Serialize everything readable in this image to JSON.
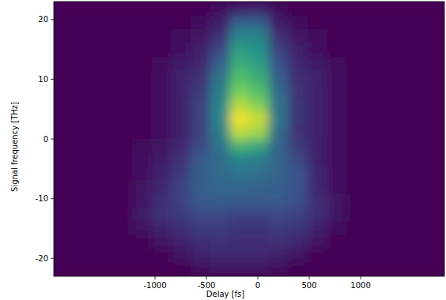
{
  "chart_data": {
    "type": "heatmap",
    "x_label": "Delay [fs]",
    "y_label": "Signal frequency [THz]",
    "xlim": [
      -1985,
      1815
    ],
    "ylim": [
      -23,
      23
    ],
    "xticks": [
      -1000,
      -500,
      0,
      500,
      1000
    ],
    "yticks": [
      -20,
      -10,
      0,
      10,
      20
    ],
    "x": [
      -1890,
      -1700,
      -1510,
      -1320,
      -1130,
      -940,
      -750,
      -560,
      -370,
      -180,
      10,
      200,
      390,
      580,
      770,
      960,
      1150,
      1340,
      1530,
      1720
    ],
    "y": [
      21.85,
      19.55,
      17.25,
      14.95,
      12.65,
      10.35,
      8.05,
      5.75,
      3.45,
      1.15,
      -1.15,
      -3.45,
      -5.75,
      -8.05,
      -10.35,
      -12.65,
      -14.95,
      -17.25,
      -19.55,
      -21.85
    ],
    "values": [
      [
        0,
        0,
        0,
        0,
        0,
        0,
        0,
        0,
        0.03,
        0.08,
        0.1,
        0.03,
        0,
        0,
        0,
        0,
        0,
        0,
        0,
        0
      ],
      [
        0,
        0,
        0,
        0,
        0,
        0,
        0,
        0.03,
        0.08,
        0.3,
        0.3,
        0.08,
        0.03,
        0,
        0,
        0,
        0,
        0,
        0,
        0
      ],
      [
        0,
        0,
        0,
        0,
        0,
        0,
        0.04,
        0.06,
        0.15,
        0.45,
        0.45,
        0.15,
        0.06,
        0.04,
        0,
        0,
        0,
        0,
        0,
        0
      ],
      [
        0,
        0,
        0,
        0,
        0,
        0,
        0.05,
        0.1,
        0.22,
        0.55,
        0.5,
        0.2,
        0.1,
        0.05,
        0,
        0,
        0,
        0,
        0,
        0
      ],
      [
        0,
        0,
        0,
        0,
        0,
        0.03,
        0.08,
        0.12,
        0.3,
        0.62,
        0.55,
        0.25,
        0.12,
        0.08,
        0.03,
        0,
        0,
        0,
        0,
        0
      ],
      [
        0,
        0,
        0,
        0,
        0,
        0.04,
        0.1,
        0.15,
        0.38,
        0.7,
        0.62,
        0.3,
        0.14,
        0.1,
        0.04,
        0,
        0,
        0,
        0,
        0
      ],
      [
        0,
        0,
        0,
        0,
        0,
        0.05,
        0.1,
        0.18,
        0.42,
        0.78,
        0.7,
        0.35,
        0.15,
        0.1,
        0.05,
        0,
        0,
        0,
        0,
        0
      ],
      [
        0,
        0,
        0,
        0,
        0,
        0.05,
        0.1,
        0.2,
        0.45,
        0.88,
        0.8,
        0.38,
        0.16,
        0.1,
        0.05,
        0,
        0,
        0,
        0,
        0
      ],
      [
        0,
        0,
        0,
        0,
        0,
        0.05,
        0.1,
        0.2,
        0.45,
        0.98,
        0.92,
        0.38,
        0.16,
        0.1,
        0.05,
        0,
        0,
        0,
        0,
        0
      ],
      [
        0,
        0,
        0,
        0,
        0,
        0.05,
        0.1,
        0.2,
        0.42,
        0.9,
        0.85,
        0.35,
        0.15,
        0.1,
        0.05,
        0,
        0,
        0,
        0,
        0
      ],
      [
        0,
        0,
        0,
        0,
        0.03,
        0.06,
        0.12,
        0.22,
        0.38,
        0.65,
        0.6,
        0.32,
        0.18,
        0.1,
        0.04,
        0,
        0,
        0,
        0,
        0
      ],
      [
        0,
        0,
        0,
        0,
        0.04,
        0.08,
        0.15,
        0.28,
        0.35,
        0.45,
        0.42,
        0.32,
        0.22,
        0.1,
        0.04,
        0,
        0,
        0,
        0,
        0
      ],
      [
        0,
        0,
        0,
        0,
        0.05,
        0.1,
        0.18,
        0.3,
        0.35,
        0.38,
        0.36,
        0.32,
        0.25,
        0.12,
        0.05,
        0,
        0,
        0,
        0,
        0
      ],
      [
        0,
        0,
        0,
        0,
        0.06,
        0.12,
        0.2,
        0.3,
        0.33,
        0.33,
        0.32,
        0.3,
        0.25,
        0.12,
        0.05,
        0,
        0,
        0,
        0,
        0
      ],
      [
        0,
        0,
        0,
        0,
        0.07,
        0.14,
        0.2,
        0.28,
        0.3,
        0.28,
        0.28,
        0.28,
        0.24,
        0.14,
        0.06,
        0,
        0,
        0,
        0,
        0
      ],
      [
        0,
        0,
        0,
        0,
        0.08,
        0.15,
        0.18,
        0.22,
        0.22,
        0.2,
        0.2,
        0.22,
        0.2,
        0.14,
        0.07,
        0,
        0,
        0,
        0,
        0
      ],
      [
        0,
        0,
        0,
        0,
        0.06,
        0.1,
        0.14,
        0.18,
        0.18,
        0.16,
        0.16,
        0.18,
        0.16,
        0.1,
        0.05,
        0,
        0,
        0,
        0,
        0
      ],
      [
        0,
        0,
        0,
        0,
        0,
        0.06,
        0.1,
        0.14,
        0.15,
        0.14,
        0.14,
        0.15,
        0.12,
        0.06,
        0,
        0,
        0,
        0,
        0,
        0
      ],
      [
        0,
        0,
        0,
        0,
        0,
        0,
        0.06,
        0.1,
        0.12,
        0.12,
        0.12,
        0.1,
        0.06,
        0,
        0,
        0,
        0,
        0,
        0,
        0
      ],
      [
        0,
        0,
        0,
        0,
        0,
        0,
        0,
        0.04,
        0.06,
        0.06,
        0.06,
        0.04,
        0,
        0,
        0,
        0,
        0,
        0,
        0,
        0
      ]
    ]
  }
}
